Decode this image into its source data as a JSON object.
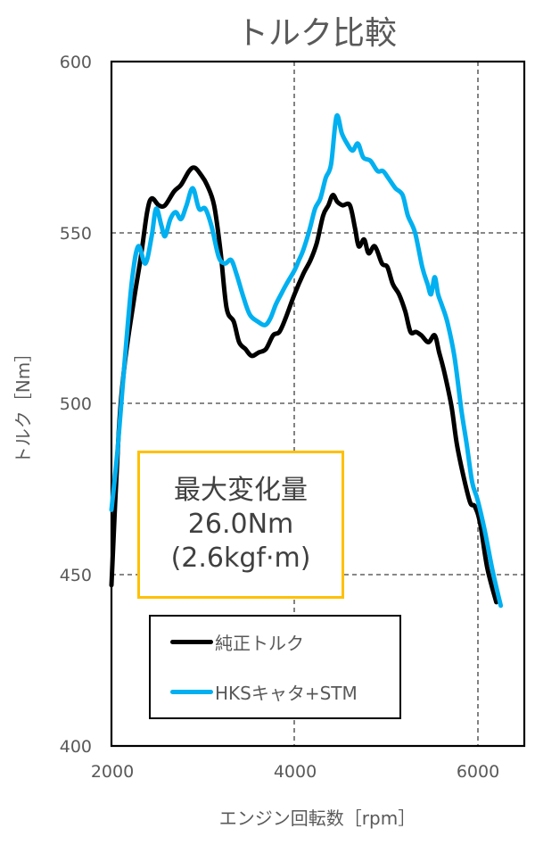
{
  "chart_data": {
    "type": "line",
    "title": "トルク比較",
    "xlabel": "エンジン回転数［rpm］",
    "ylabel": "トルク［Nm］",
    "xlim": [
      2000,
      6500
    ],
    "ylim": [
      400,
      600
    ],
    "xticks": [
      2000,
      4000,
      6000
    ],
    "yticks": [
      400,
      450,
      500,
      550,
      600
    ],
    "grid": {
      "x": true,
      "y": true,
      "style": "dashed"
    },
    "legend_position": "inside-lower-left",
    "series": [
      {
        "name": "純正トルク",
        "color": "#000000",
        "points": [
          [
            2000,
            447
          ],
          [
            2078,
            491
          ],
          [
            2146,
            512
          ],
          [
            2243,
            530
          ],
          [
            2321,
            543
          ],
          [
            2389,
            556
          ],
          [
            2438,
            560
          ],
          [
            2516,
            558
          ],
          [
            2584,
            558
          ],
          [
            2681,
            562
          ],
          [
            2759,
            564
          ],
          [
            2847,
            568
          ],
          [
            2905,
            569
          ],
          [
            2973,
            567
          ],
          [
            3041,
            564
          ],
          [
            3119,
            558
          ],
          [
            3187,
            545
          ],
          [
            3255,
            528
          ],
          [
            3333,
            524
          ],
          [
            3392,
            518
          ],
          [
            3460,
            516
          ],
          [
            3528,
            514
          ],
          [
            3606,
            515
          ],
          [
            3684,
            516
          ],
          [
            3762,
            520
          ],
          [
            3830,
            521
          ],
          [
            3898,
            525
          ],
          [
            3995,
            532
          ],
          [
            4092,
            538
          ],
          [
            4170,
            542
          ],
          [
            4238,
            547
          ],
          [
            4307,
            555
          ],
          [
            4365,
            558
          ],
          [
            4413,
            561
          ],
          [
            4462,
            559
          ],
          [
            4521,
            558
          ],
          [
            4599,
            558
          ],
          [
            4657,
            551
          ],
          [
            4696,
            546
          ],
          [
            4754,
            548
          ],
          [
            4803,
            544
          ],
          [
            4871,
            546
          ],
          [
            4949,
            541
          ],
          [
            5007,
            540
          ],
          [
            5066,
            535
          ],
          [
            5134,
            532
          ],
          [
            5202,
            527
          ],
          [
            5260,
            521
          ],
          [
            5319,
            521
          ],
          [
            5377,
            520
          ],
          [
            5455,
            518
          ],
          [
            5523,
            520
          ],
          [
            5572,
            515
          ],
          [
            5630,
            509
          ],
          [
            5708,
            499
          ],
          [
            5766,
            488
          ],
          [
            5844,
            478
          ],
          [
            5912,
            471
          ],
          [
            5961,
            470
          ],
          [
            6019,
            465
          ],
          [
            6097,
            452
          ],
          [
            6195,
            442
          ]
        ]
      },
      {
        "name": "HKSキャタ+STM",
        "color": "#00B0F0",
        "points": [
          [
            2000,
            469
          ],
          [
            2068,
            487
          ],
          [
            2146,
            513
          ],
          [
            2224,
            536
          ],
          [
            2292,
            546
          ],
          [
            2370,
            541
          ],
          [
            2438,
            549
          ],
          [
            2487,
            557
          ],
          [
            2545,
            552
          ],
          [
            2584,
            549
          ],
          [
            2642,
            554
          ],
          [
            2700,
            556
          ],
          [
            2759,
            554
          ],
          [
            2818,
            558
          ],
          [
            2886,
            563
          ],
          [
            2954,
            557
          ],
          [
            3022,
            557
          ],
          [
            3090,
            552
          ],
          [
            3168,
            543
          ],
          [
            3236,
            541
          ],
          [
            3304,
            542
          ],
          [
            3362,
            538
          ],
          [
            3440,
            531
          ],
          [
            3509,
            526
          ],
          [
            3596,
            524
          ],
          [
            3674,
            523
          ],
          [
            3733,
            525
          ],
          [
            3791,
            529
          ],
          [
            3849,
            532
          ],
          [
            3908,
            535
          ],
          [
            3995,
            539
          ],
          [
            4044,
            542
          ],
          [
            4092,
            545
          ],
          [
            4161,
            551
          ],
          [
            4219,
            557
          ],
          [
            4277,
            560
          ],
          [
            4336,
            566
          ],
          [
            4394,
            570
          ],
          [
            4453,
            584
          ],
          [
            4511,
            579
          ],
          [
            4569,
            576
          ],
          [
            4628,
            574
          ],
          [
            4686,
            576
          ],
          [
            4745,
            572
          ],
          [
            4823,
            571
          ],
          [
            4900,
            568
          ],
          [
            4959,
            568
          ],
          [
            5017,
            566
          ],
          [
            5095,
            563
          ],
          [
            5173,
            561
          ],
          [
            5231,
            555
          ],
          [
            5309,
            550
          ],
          [
            5387,
            540
          ],
          [
            5445,
            535
          ],
          [
            5484,
            532
          ],
          [
            5523,
            537
          ],
          [
            5560,
            532
          ],
          [
            5599,
            529
          ],
          [
            5660,
            524
          ],
          [
            5737,
            514
          ],
          [
            5815,
            498
          ],
          [
            5873,
            488
          ],
          [
            5932,
            477
          ],
          [
            5990,
            472
          ],
          [
            6068,
            463
          ],
          [
            6156,
            451
          ],
          [
            6243,
            441
          ]
        ]
      }
    ],
    "annotations": [
      {
        "text": [
          "最大変化量",
          "26.0Nm",
          "(2.6kgf·m)"
        ],
        "box_color": "#FFC000"
      }
    ]
  },
  "annotation": {
    "line1": "最大変化量",
    "line2": "26.0Nm",
    "line3": "(2.6kgf·m)"
  },
  "legend": {
    "item1": "純正トルク",
    "item2": "HKSキャタ+STM"
  },
  "axes": {
    "y_ticks": [
      "600",
      "550",
      "500",
      "450",
      "400"
    ],
    "x_ticks": [
      "2000",
      "4000",
      "6000"
    ],
    "xlabel": "エンジン回転数［rpm］",
    "ylabel": "トルク［Nm］"
  },
  "title": "トルク比較"
}
